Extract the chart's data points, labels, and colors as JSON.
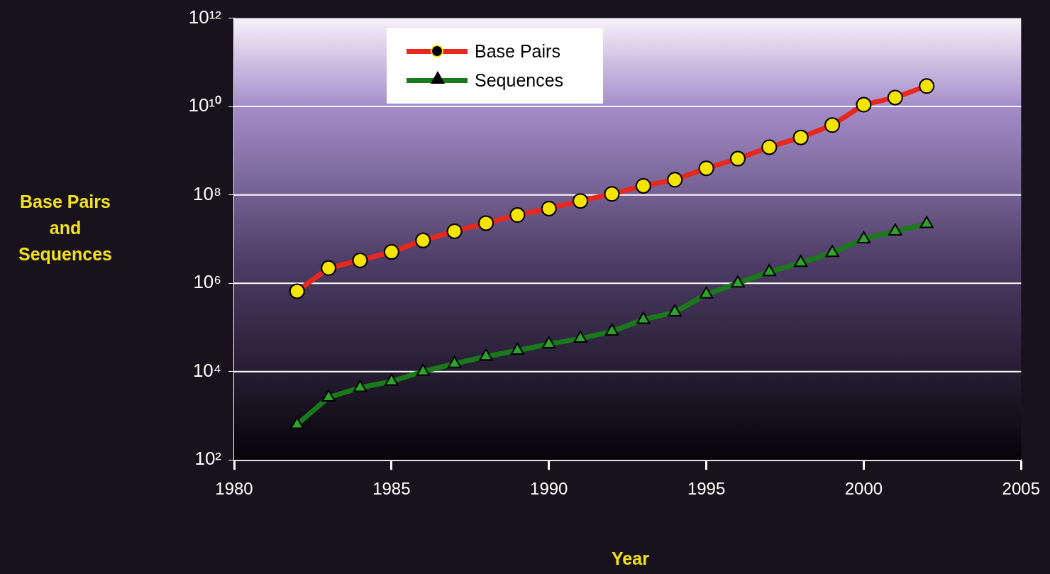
{
  "chart_data": {
    "type": "line",
    "xlabel": "Year",
    "ylabel": "Base Pairs and Sequences",
    "x": [
      1982,
      1983,
      1984,
      1985,
      1986,
      1987,
      1988,
      1989,
      1990,
      1991,
      1992,
      1993,
      1994,
      1995,
      1996,
      1997,
      1998,
      1999,
      2000,
      2001,
      2002
    ],
    "series": [
      {
        "name": "Base Pairs",
        "color": "#e8281e",
        "marker": "circle",
        "values": [
          660000,
          2200000,
          3300000,
          5100000,
          9300000,
          15000000,
          23000000,
          35000000,
          49000000,
          73000000,
          105000000,
          160000000,
          220000000,
          400000000,
          660000000,
          1200000000,
          2000000000,
          3800000000,
          11000000000,
          16000000000,
          29000000000
        ]
      },
      {
        "name": "Sequences",
        "color": "#1a7a1a",
        "marker": "triangle",
        "values": [
          630,
          2600,
          4300,
          6000,
          10000,
          15000,
          22000,
          30000,
          42000,
          56000,
          81000,
          150000,
          220000,
          560000,
          1000000,
          1800000,
          2900000,
          4900000,
          10000000,
          15000000,
          22000000
        ]
      }
    ],
    "xlim": [
      1980,
      2005
    ],
    "xticks": [
      1980,
      1985,
      1990,
      1995,
      2000,
      2005
    ],
    "ylim": [
      100,
      1000000000000
    ],
    "yticks": [
      {
        "value": 100,
        "label": "10²"
      },
      {
        "value": 10000,
        "label": "10⁴"
      },
      {
        "value": 1000000,
        "label": "10⁶"
      },
      {
        "value": 100000000,
        "label": "10⁸"
      },
      {
        "value": 10000000000,
        "label": "10¹⁰"
      },
      {
        "value": 1000000000000,
        "label": "10¹²"
      }
    ],
    "log": "y",
    "grid": "y",
    "legend": "top left",
    "line_style": "solid"
  }
}
